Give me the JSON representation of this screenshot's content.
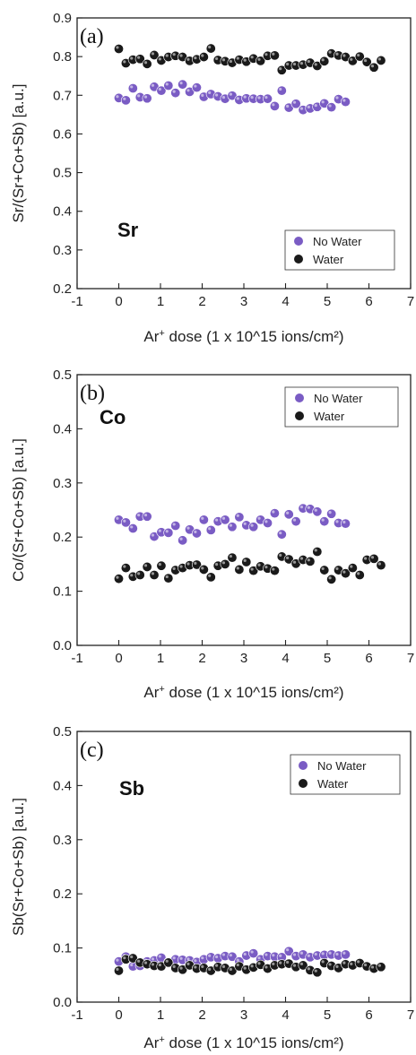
{
  "colors": {
    "no_water": "#7a5cc4",
    "water": "#1a1a1a"
  },
  "chart_data": [
    {
      "type": "scatter",
      "panel_tag": "(a)",
      "element_label": "Sr",
      "ylabel": "Sr/(Sr+Co+Sb) [a.u.]",
      "xlabel_parts": [
        "Ar",
        "+",
        " dose (1 x 10^15 ions/cm²)"
      ],
      "xlim": [
        -1,
        7
      ],
      "ylim": [
        0.2,
        0.9
      ],
      "xticks": [
        "-1",
        "0",
        "1",
        "2",
        "3",
        "4",
        "5",
        "6",
        "7"
      ],
      "yticks": [
        "0.2",
        "0.3",
        "0.4",
        "0.5",
        "0.6",
        "0.7",
        "0.8",
        "0.9"
      ],
      "legend_position": "lower-right",
      "series": [
        {
          "name": "No Water",
          "color_key": "no_water",
          "x": [
            0.0,
            0.17,
            0.34,
            0.51,
            0.68,
            0.85,
            1.02,
            1.19,
            1.36,
            1.53,
            1.7,
            1.87,
            2.04,
            2.21,
            2.38,
            2.55,
            2.72,
            2.89,
            3.06,
            3.23,
            3.4,
            3.57,
            3.74,
            3.91,
            4.08,
            4.25,
            4.42,
            4.59,
            4.76,
            4.93,
            5.1,
            5.27,
            5.44
          ],
          "y": [
            0.693,
            0.687,
            0.718,
            0.695,
            0.692,
            0.722,
            0.712,
            0.725,
            0.706,
            0.728,
            0.709,
            0.72,
            0.696,
            0.703,
            0.697,
            0.691,
            0.699,
            0.688,
            0.692,
            0.691,
            0.69,
            0.691,
            0.672,
            0.712,
            0.668,
            0.678,
            0.662,
            0.666,
            0.67,
            0.679,
            0.669,
            0.69,
            0.683
          ]
        },
        {
          "name": "Water",
          "color_key": "water",
          "x": [
            0.0,
            0.17,
            0.34,
            0.51,
            0.68,
            0.85,
            1.02,
            1.19,
            1.36,
            1.53,
            1.7,
            1.87,
            2.04,
            2.21,
            2.38,
            2.55,
            2.72,
            2.89,
            3.06,
            3.23,
            3.4,
            3.57,
            3.74,
            3.91,
            4.08,
            4.25,
            4.42,
            4.59,
            4.76,
            4.93,
            5.1,
            5.27,
            5.44,
            5.61,
            5.78,
            5.95,
            6.12,
            6.29
          ],
          "y": [
            0.82,
            0.783,
            0.792,
            0.794,
            0.781,
            0.804,
            0.79,
            0.799,
            0.802,
            0.799,
            0.789,
            0.793,
            0.799,
            0.821,
            0.791,
            0.788,
            0.784,
            0.792,
            0.787,
            0.795,
            0.789,
            0.802,
            0.803,
            0.765,
            0.777,
            0.777,
            0.779,
            0.784,
            0.776,
            0.788,
            0.808,
            0.803,
            0.799,
            0.789,
            0.8,
            0.786,
            0.772,
            0.79
          ]
        }
      ]
    },
    {
      "type": "scatter",
      "panel_tag": "(b)",
      "element_label": "Co",
      "ylabel": "Co/(Sr+Co+Sb) [a.u.]",
      "xlabel_parts": [
        "Ar",
        "+",
        " dose (1 x 10^15 ions/cm²)"
      ],
      "xlim": [
        -1,
        7
      ],
      "ylim": [
        0.0,
        0.5
      ],
      "xticks": [
        "-1",
        "0",
        "1",
        "2",
        "3",
        "4",
        "5",
        "6",
        "7"
      ],
      "yticks": [
        "0.0",
        "0.1",
        "0.2",
        "0.3",
        "0.4",
        "0.5"
      ],
      "legend_position": "top-right",
      "series": [
        {
          "name": "No Water",
          "color_key": "no_water",
          "x": [
            0.0,
            0.17,
            0.34,
            0.51,
            0.68,
            0.85,
            1.02,
            1.19,
            1.36,
            1.53,
            1.7,
            1.87,
            2.04,
            2.21,
            2.38,
            2.55,
            2.72,
            2.89,
            3.06,
            3.23,
            3.4,
            3.57,
            3.74,
            3.91,
            4.08,
            4.25,
            4.42,
            4.59,
            4.76,
            4.93,
            5.1,
            5.27,
            5.44
          ],
          "y": [
            0.232,
            0.227,
            0.216,
            0.238,
            0.238,
            0.201,
            0.209,
            0.208,
            0.221,
            0.194,
            0.214,
            0.207,
            0.232,
            0.213,
            0.229,
            0.232,
            0.219,
            0.237,
            0.222,
            0.219,
            0.232,
            0.226,
            0.244,
            0.205,
            0.242,
            0.229,
            0.253,
            0.252,
            0.247,
            0.229,
            0.243,
            0.226,
            0.225
          ]
        },
        {
          "name": "Water",
          "color_key": "water",
          "x": [
            0.0,
            0.17,
            0.34,
            0.51,
            0.68,
            0.85,
            1.02,
            1.19,
            1.36,
            1.53,
            1.7,
            1.87,
            2.04,
            2.21,
            2.38,
            2.55,
            2.72,
            2.89,
            3.06,
            3.23,
            3.4,
            3.57,
            3.74,
            3.91,
            4.08,
            4.25,
            4.42,
            4.59,
            4.76,
            4.93,
            5.1,
            5.27,
            5.44,
            5.61,
            5.78,
            5.95,
            6.12,
            6.29
          ],
          "y": [
            0.123,
            0.143,
            0.127,
            0.13,
            0.145,
            0.13,
            0.147,
            0.124,
            0.139,
            0.143,
            0.148,
            0.149,
            0.14,
            0.126,
            0.147,
            0.15,
            0.162,
            0.14,
            0.154,
            0.138,
            0.146,
            0.142,
            0.138,
            0.164,
            0.159,
            0.151,
            0.158,
            0.155,
            0.173,
            0.139,
            0.122,
            0.139,
            0.133,
            0.143,
            0.13,
            0.158,
            0.16,
            0.148
          ]
        }
      ]
    },
    {
      "type": "scatter",
      "panel_tag": "(c)",
      "element_label": "Sb",
      "ylabel": "Sb(Sr+Co+Sb) [a.u.]",
      "xlabel_parts": [
        "Ar",
        "+",
        " dose (1 x 10^15 ions/cm²)"
      ],
      "xlim": [
        -1,
        7
      ],
      "ylim": [
        0.0,
        0.5
      ],
      "xticks": [
        "-1",
        "0",
        "1",
        "2",
        "3",
        "4",
        "5",
        "6",
        "7"
      ],
      "yticks": [
        "0.0",
        "0.1",
        "0.2",
        "0.3",
        "0.4",
        "0.5"
      ],
      "legend_position": "top-right",
      "series": [
        {
          "name": "No Water",
          "color_key": "no_water",
          "x": [
            0.0,
            0.17,
            0.34,
            0.51,
            0.68,
            0.85,
            1.02,
            1.19,
            1.36,
            1.53,
            1.7,
            1.87,
            2.04,
            2.21,
            2.38,
            2.55,
            2.72,
            2.89,
            3.06,
            3.23,
            3.4,
            3.57,
            3.74,
            3.91,
            4.08,
            4.25,
            4.42,
            4.59,
            4.76,
            4.93,
            5.1,
            5.27,
            5.44
          ],
          "y": [
            0.075,
            0.084,
            0.066,
            0.067,
            0.075,
            0.077,
            0.082,
            0.074,
            0.079,
            0.078,
            0.077,
            0.074,
            0.079,
            0.083,
            0.081,
            0.085,
            0.084,
            0.075,
            0.086,
            0.09,
            0.079,
            0.085,
            0.084,
            0.083,
            0.094,
            0.085,
            0.088,
            0.083,
            0.086,
            0.087,
            0.088,
            0.086,
            0.088
          ]
        },
        {
          "name": "Water",
          "color_key": "water",
          "x": [
            0.0,
            0.17,
            0.34,
            0.51,
            0.68,
            0.85,
            1.02,
            1.19,
            1.36,
            1.53,
            1.7,
            1.87,
            2.04,
            2.21,
            2.38,
            2.55,
            2.72,
            2.89,
            3.06,
            3.23,
            3.4,
            3.57,
            3.74,
            3.91,
            4.08,
            4.25,
            4.42,
            4.59,
            4.76,
            4.93,
            5.1,
            5.27,
            5.44,
            5.61,
            5.78,
            5.95,
            6.12,
            6.29
          ],
          "y": [
            0.058,
            0.079,
            0.081,
            0.073,
            0.07,
            0.067,
            0.066,
            0.073,
            0.063,
            0.06,
            0.068,
            0.062,
            0.063,
            0.058,
            0.065,
            0.063,
            0.058,
            0.066,
            0.06,
            0.064,
            0.069,
            0.062,
            0.068,
            0.07,
            0.071,
            0.065,
            0.068,
            0.059,
            0.055,
            0.072,
            0.067,
            0.063,
            0.07,
            0.068,
            0.072,
            0.066,
            0.062,
            0.065
          ]
        }
      ]
    }
  ]
}
